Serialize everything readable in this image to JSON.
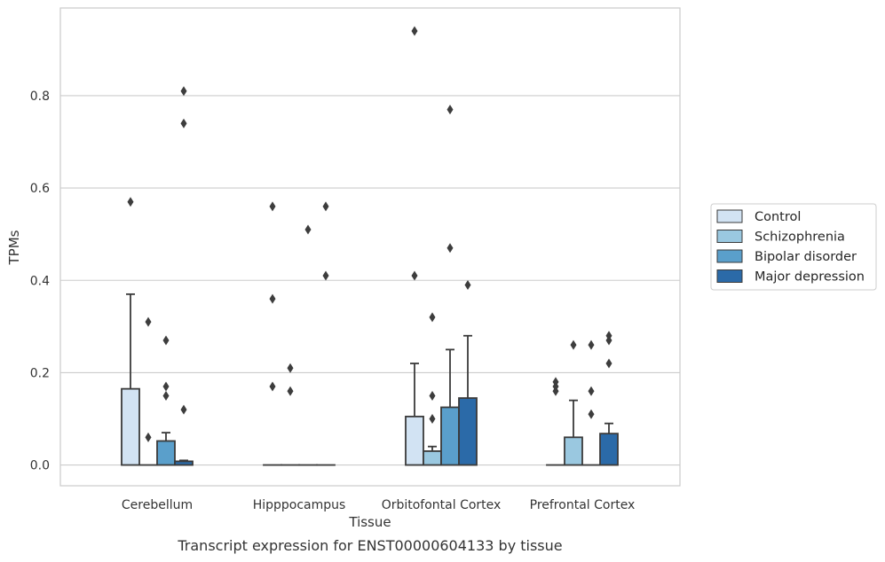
{
  "chart_data": {
    "type": "bar",
    "title": "Transcript expression for ENST00000604133 by tissue",
    "xlabel": "Tissue",
    "ylabel": "TPMs",
    "ylim": [
      -0.045,
      0.99
    ],
    "yticks": [
      0.0,
      0.2,
      0.4,
      0.6,
      0.8
    ],
    "ytick_labels": [
      "0.0",
      "0.2",
      "0.4",
      "0.6",
      "0.8"
    ],
    "grid": "horizontal",
    "legend_position": "right",
    "categories": [
      "Cerebellum",
      "Hipppocampus",
      "Orbitofontal Cortex",
      "Prefrontal Cortex"
    ],
    "series": [
      {
        "name": "Control",
        "color": "#d2e3f3",
        "values": [
          0.165,
          0.0,
          0.105,
          0.0
        ],
        "error_upper": [
          0.37,
          null,
          0.22,
          null
        ],
        "outliers": [
          [
            0.57
          ],
          [
            0.36,
            0.17,
            0.56
          ],
          [
            0.94,
            0.41
          ],
          [
            0.16,
            0.17,
            0.18
          ]
        ]
      },
      {
        "name": "Schizophrenia",
        "color": "#9ac8e0",
        "values": [
          0.0,
          0.0,
          0.03,
          0.06
        ],
        "error_upper": [
          null,
          null,
          0.04,
          0.14
        ],
        "outliers": [
          [
            0.06,
            0.31
          ],
          [
            0.16,
            0.21
          ],
          [
            0.1,
            0.15,
            0.32
          ],
          [
            0.26
          ]
        ]
      },
      {
        "name": "Bipolar disorder",
        "color": "#5a9fcb",
        "values": [
          0.052,
          0.0,
          0.125,
          0.0
        ],
        "error_upper": [
          0.07,
          null,
          0.25,
          null
        ],
        "outliers": [
          [
            0.15,
            0.17,
            0.27
          ],
          [
            0.51
          ],
          [
            0.47,
            0.77
          ],
          [
            0.11,
            0.16,
            0.26
          ]
        ]
      },
      {
        "name": "Major depression",
        "color": "#2b6aa8",
        "values": [
          0.008,
          0.0,
          0.145,
          0.068
        ],
        "error_upper": [
          0.01,
          null,
          0.28,
          0.09
        ],
        "outliers": [
          [
            0.12,
            0.74,
            0.81
          ],
          [
            0.41,
            0.56
          ],
          [
            0.39
          ],
          [
            0.22,
            0.27,
            0.28
          ]
        ]
      }
    ]
  }
}
